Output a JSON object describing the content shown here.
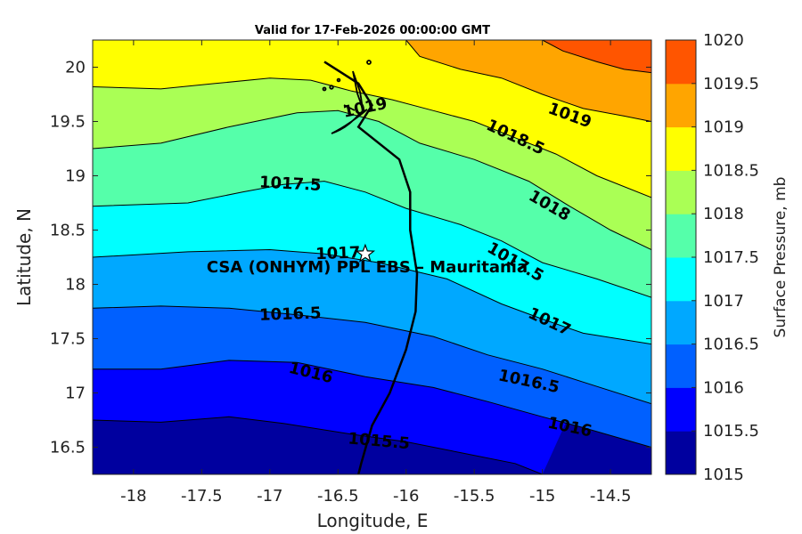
{
  "chart_data": {
    "type": "contourf",
    "title": "Valid for 17-Feb-2026 00:00:00 GMT",
    "xlabel": "Longitude, E",
    "ylabel": "Latitude, N",
    "colorbar_label": "Surface Pressure, mb",
    "xlim": [
      -18.3,
      -14.2
    ],
    "ylim": [
      16.25,
      20.25
    ],
    "xticks": [
      -18,
      -17.5,
      -17,
      -16.5,
      -16,
      -15.5,
      -15,
      -14.5
    ],
    "xtick_labels": [
      "-18",
      "-17.5",
      "-17",
      "-16.5",
      "-16",
      "-15.5",
      "-15",
      "-14.5"
    ],
    "yticks": [
      16.5,
      17,
      17.5,
      18,
      18.5,
      19,
      19.5,
      20
    ],
    "ytick_labels": [
      "16.5",
      "17",
      "17.5",
      "18",
      "18.5",
      "19",
      "19.5",
      "20"
    ],
    "levels": [
      1015,
      1015.5,
      1016,
      1016.5,
      1017,
      1017.5,
      1018,
      1018.5,
      1019,
      1019.5,
      1020
    ],
    "level_labels": [
      "1015",
      "1015.5",
      "1016",
      "1016.5",
      "1017",
      "1017.5",
      "1018",
      "1018.5",
      "1019",
      "1019.5",
      "1020"
    ],
    "band_colors": [
      "#00009f",
      "#0000ff",
      "#0060ff",
      "#00a8ff",
      "#00ffff",
      "#55ffaa",
      "#aaff55",
      "#ffff00",
      "#ffa500",
      "#ff5500"
    ],
    "contours": [
      {
        "level": 1015.5,
        "points": [
          [
            -18.3,
            16.75
          ],
          [
            -17.8,
            16.73
          ],
          [
            -17.3,
            16.78
          ],
          [
            -16.9,
            16.72
          ],
          [
            -16.4,
            16.62
          ],
          [
            -16.0,
            16.55
          ],
          [
            -15.6,
            16.45
          ],
          [
            -15.2,
            16.35
          ],
          [
            -15.0,
            16.25
          ]
        ]
      },
      {
        "level": 1016,
        "points": [
          [
            -18.3,
            17.22
          ],
          [
            -17.8,
            17.22
          ],
          [
            -17.3,
            17.3
          ],
          [
            -16.8,
            17.28
          ],
          [
            -16.3,
            17.15
          ],
          [
            -15.8,
            17.05
          ],
          [
            -15.4,
            16.92
          ],
          [
            -15.0,
            16.78
          ],
          [
            -14.7,
            16.68
          ],
          [
            -14.2,
            16.5
          ]
        ]
      },
      {
        "level": 1016.5,
        "points": [
          [
            -18.3,
            17.78
          ],
          [
            -17.8,
            17.8
          ],
          [
            -17.3,
            17.78
          ],
          [
            -16.8,
            17.72
          ],
          [
            -16.3,
            17.65
          ],
          [
            -15.8,
            17.52
          ],
          [
            -15.4,
            17.35
          ],
          [
            -15.0,
            17.22
          ],
          [
            -14.7,
            17.1
          ],
          [
            -14.2,
            16.9
          ]
        ]
      },
      {
        "level": 1017,
        "points": [
          [
            -18.3,
            18.25
          ],
          [
            -17.6,
            18.3
          ],
          [
            -17.0,
            18.32
          ],
          [
            -16.6,
            18.28
          ],
          [
            -16.2,
            18.2
          ],
          [
            -15.7,
            18.05
          ],
          [
            -15.3,
            17.82
          ],
          [
            -15.0,
            17.68
          ],
          [
            -14.7,
            17.55
          ],
          [
            -14.2,
            17.45
          ]
        ]
      },
      {
        "level": 1017.5,
        "points": [
          [
            -18.3,
            18.72
          ],
          [
            -17.6,
            18.75
          ],
          [
            -17.2,
            18.85
          ],
          [
            -16.9,
            18.92
          ],
          [
            -16.6,
            18.95
          ],
          [
            -16.3,
            18.85
          ],
          [
            -16.0,
            18.7
          ],
          [
            -15.6,
            18.55
          ],
          [
            -15.3,
            18.4
          ],
          [
            -15.0,
            18.2
          ],
          [
            -14.6,
            18.05
          ],
          [
            -14.2,
            17.88
          ]
        ]
      },
      {
        "level": 1018,
        "points": [
          [
            -18.3,
            19.25
          ],
          [
            -17.8,
            19.3
          ],
          [
            -17.3,
            19.45
          ],
          [
            -16.8,
            19.58
          ],
          [
            -16.5,
            19.6
          ],
          [
            -16.2,
            19.5
          ],
          [
            -15.9,
            19.3
          ],
          [
            -15.5,
            19.15
          ],
          [
            -15.1,
            18.95
          ],
          [
            -14.8,
            18.72
          ],
          [
            -14.5,
            18.5
          ],
          [
            -14.2,
            18.32
          ]
        ]
      },
      {
        "level": 1018.5,
        "points": [
          [
            -18.3,
            19.82
          ],
          [
            -17.8,
            19.8
          ],
          [
            -17.4,
            19.85
          ],
          [
            -17.0,
            19.9
          ],
          [
            -16.7,
            19.88
          ],
          [
            -16.4,
            19.78
          ],
          [
            -16.1,
            19.7
          ],
          [
            -15.8,
            19.6
          ],
          [
            -15.5,
            19.5
          ],
          [
            -15.2,
            19.35
          ],
          [
            -14.9,
            19.2
          ],
          [
            -14.6,
            19.0
          ],
          [
            -14.2,
            18.8
          ]
        ]
      },
      {
        "level": 1019,
        "points": [
          [
            -16.0,
            20.25
          ],
          [
            -15.9,
            20.1
          ],
          [
            -15.6,
            19.98
          ],
          [
            -15.3,
            19.9
          ],
          [
            -15.0,
            19.75
          ],
          [
            -14.7,
            19.62
          ],
          [
            -14.4,
            19.55
          ],
          [
            -14.2,
            19.5
          ]
        ]
      },
      {
        "level": 1019.5,
        "points": [
          [
            -15.0,
            20.25
          ],
          [
            -14.85,
            20.15
          ],
          [
            -14.6,
            20.05
          ],
          [
            -14.4,
            19.98
          ],
          [
            -14.2,
            19.95
          ]
        ]
      },
      {
        "level": 1020,
        "points": []
      }
    ],
    "contour_labels": [
      {
        "text": "1019",
        "x": -16.3,
        "y": 19.62,
        "angle": -12
      },
      {
        "text": "1019",
        "x": -14.8,
        "y": 19.55,
        "angle": 20
      },
      {
        "text": "1018.5",
        "x": -15.2,
        "y": 19.35,
        "angle": 25
      },
      {
        "text": "1018",
        "x": -14.95,
        "y": 18.72,
        "angle": 30
      },
      {
        "text": "1017.5",
        "x": -16.85,
        "y": 18.92,
        "angle": 3
      },
      {
        "text": "1017.5",
        "x": -15.2,
        "y": 18.2,
        "angle": 30
      },
      {
        "text": "1017",
        "x": -16.5,
        "y": 18.28,
        "angle": -2
      },
      {
        "text": "1017",
        "x": -14.95,
        "y": 17.65,
        "angle": 25
      },
      {
        "text": "1016.5",
        "x": -16.85,
        "y": 17.72,
        "angle": -2
      },
      {
        "text": "1016.5",
        "x": -15.1,
        "y": 17.1,
        "angle": 12
      },
      {
        "text": "1016",
        "x": -16.7,
        "y": 17.18,
        "angle": 14
      },
      {
        "text": "1016",
        "x": -14.8,
        "y": 16.68,
        "angle": 12
      },
      {
        "text": "1015.5",
        "x": -16.2,
        "y": 16.55,
        "angle": 5
      }
    ],
    "coastline": [
      [
        -16.6,
        20.05
      ],
      [
        -16.35,
        19.85
      ],
      [
        -16.25,
        19.65
      ],
      [
        -16.35,
        19.45
      ],
      [
        -16.05,
        19.15
      ],
      [
        -15.97,
        18.85
      ],
      [
        -15.97,
        18.5
      ],
      [
        -15.92,
        18.1
      ],
      [
        -15.93,
        17.75
      ],
      [
        -16.0,
        17.4
      ],
      [
        -16.12,
        17.0
      ],
      [
        -16.25,
        16.7
      ],
      [
        -16.33,
        16.35
      ],
      [
        -16.35,
        16.25
      ]
    ],
    "site": {
      "name": "CSA (ONHYM) PPL EBS  – Mauritania",
      "lon": -16.3,
      "lat": 18.28
    }
  },
  "annotations": {
    "site_label": "CSA (ONHYM) PPL EBS  – Mauritania"
  }
}
